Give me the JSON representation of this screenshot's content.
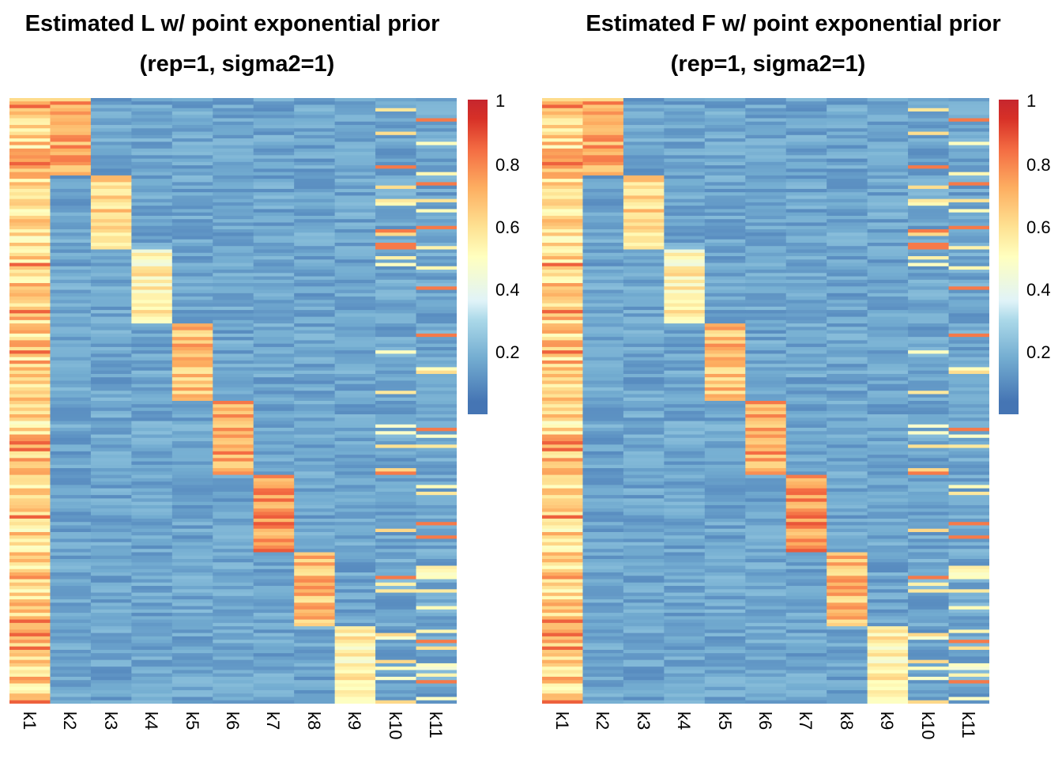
{
  "chart_data": [
    {
      "type": "heatmap",
      "title": "Estimated L w/ point exponential prior",
      "subtitle": "(rep=1, sigma2=1)",
      "columns": [
        "k1",
        "k2",
        "k3",
        "k4",
        "k5",
        "k6",
        "k7",
        "k8",
        "k9",
        "k10",
        "k11"
      ],
      "legend": {
        "position": "right",
        "range": [
          0,
          1
        ],
        "ticks": [
          "1",
          "0.8",
          "0.6",
          "0.4",
          "0.2"
        ]
      },
      "color_scale": [
        "#4575b4",
        "#74add1",
        "#abd9e9",
        "#e0f3f8",
        "#ffffbf",
        "#fee090",
        "#fdae61",
        "#f46d43",
        "#d73027"
      ],
      "blocks": [
        {
          "column": "k2",
          "rows_fraction": [
            0.0,
            0.13
          ],
          "level": 0.75
        },
        {
          "column": "k3",
          "rows_fraction": [
            0.13,
            0.25
          ],
          "level": 0.65
        },
        {
          "column": "k4",
          "rows_fraction": [
            0.25,
            0.375
          ],
          "level": 0.55
        },
        {
          "column": "k5",
          "rows_fraction": [
            0.375,
            0.5
          ],
          "level": 0.7
        },
        {
          "column": "k6",
          "rows_fraction": [
            0.5,
            0.625
          ],
          "level": 0.75
        },
        {
          "column": "k7",
          "rows_fraction": [
            0.625,
            0.75
          ],
          "level": 0.8
        },
        {
          "column": "k8",
          "rows_fraction": [
            0.75,
            0.875
          ],
          "level": 0.7
        },
        {
          "column": "k9",
          "rows_fraction": [
            0.875,
            1.0
          ],
          "level": 0.55
        }
      ],
      "k1_level": 0.65,
      "background_level": 0.05
    },
    {
      "type": "heatmap",
      "title": "Estimated F w/ point exponential prior",
      "subtitle": "(rep=1, sigma2=1)",
      "columns": [
        "k1",
        "k2",
        "k3",
        "k4",
        "k5",
        "k6",
        "k7",
        "k8",
        "k9",
        "k10",
        "k11"
      ],
      "legend": {
        "position": "right",
        "range": [
          0,
          1
        ],
        "ticks": [
          "1",
          "0.8",
          "0.6",
          "0.4",
          "0.2"
        ]
      },
      "color_scale": [
        "#4575b4",
        "#74add1",
        "#abd9e9",
        "#e0f3f8",
        "#ffffbf",
        "#fee090",
        "#fdae61",
        "#f46d43",
        "#d73027"
      ],
      "blocks": [
        {
          "column": "k2",
          "rows_fraction": [
            0.0,
            0.13
          ],
          "level": 0.75
        },
        {
          "column": "k3",
          "rows_fraction": [
            0.13,
            0.25
          ],
          "level": 0.65
        },
        {
          "column": "k4",
          "rows_fraction": [
            0.25,
            0.375
          ],
          "level": 0.55
        },
        {
          "column": "k5",
          "rows_fraction": [
            0.375,
            0.5
          ],
          "level": 0.7
        },
        {
          "column": "k6",
          "rows_fraction": [
            0.5,
            0.625
          ],
          "level": 0.75
        },
        {
          "column": "k7",
          "rows_fraction": [
            0.625,
            0.75
          ],
          "level": 0.8
        },
        {
          "column": "k8",
          "rows_fraction": [
            0.75,
            0.875
          ],
          "level": 0.7
        },
        {
          "column": "k9",
          "rows_fraction": [
            0.875,
            1.0
          ],
          "level": 0.55
        }
      ],
      "k1_level": 0.65,
      "background_level": 0.05
    }
  ]
}
